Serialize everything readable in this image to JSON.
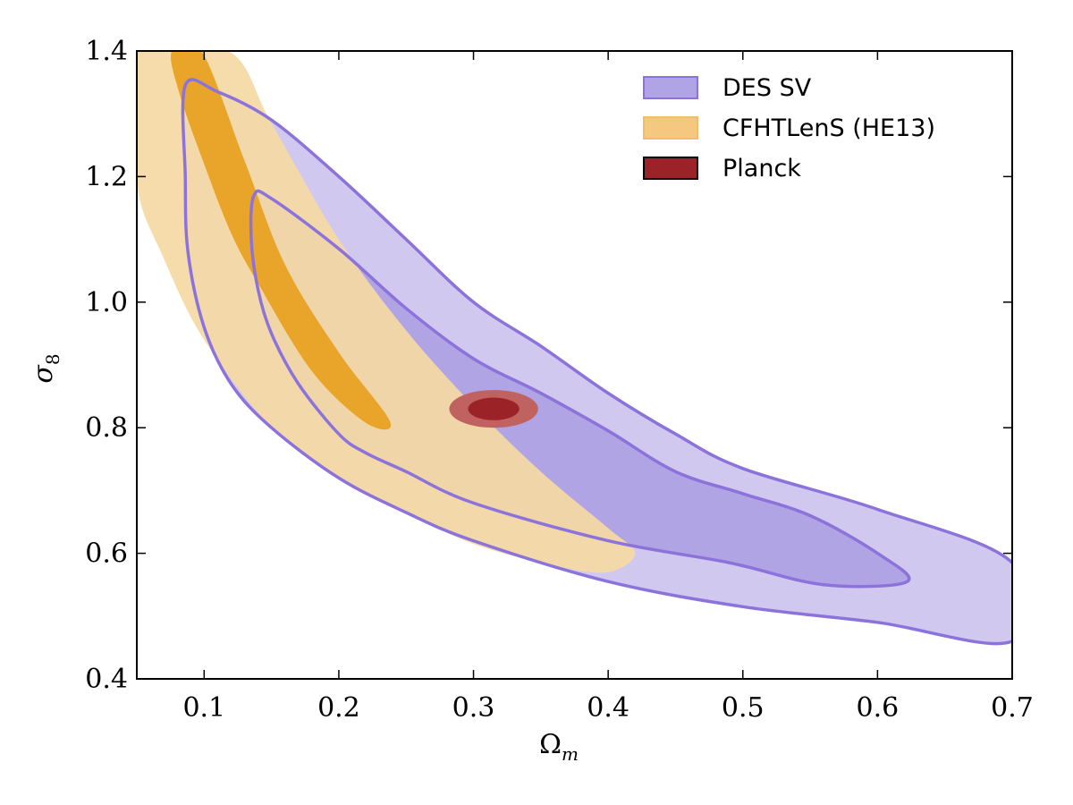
{
  "chart_data": {
    "type": "contour",
    "xlabel": "Ω_m",
    "ylabel": "σ_8",
    "xlim": [
      0.05,
      0.7
    ],
    "ylim": [
      0.4,
      1.4
    ],
    "x_ticks": [
      0.1,
      0.2,
      0.3,
      0.4,
      0.5,
      0.6,
      0.7
    ],
    "x_tick_labels": [
      "0.1",
      "0.2",
      "0.3",
      "0.4",
      "0.5",
      "0.6",
      "0.7"
    ],
    "y_ticks": [
      0.4,
      0.6,
      0.8,
      1.0,
      1.2,
      1.4
    ],
    "y_tick_labels": [
      "0.4",
      "0.6",
      "0.8",
      "1.0",
      "1.2",
      "1.4"
    ],
    "grid": false,
    "legend_position": "top-right",
    "series": [
      {
        "name": "DES SV",
        "fill_outer": "#d0c8ef",
        "fill_inner": "#b1a4e4",
        "line": "#8c73dc",
        "contour_95": [
          [
            0.086,
            1.345
          ],
          [
            0.11,
            1.335
          ],
          [
            0.15,
            1.29
          ],
          [
            0.2,
            1.2
          ],
          [
            0.25,
            1.1
          ],
          [
            0.3,
            1.0
          ],
          [
            0.35,
            0.93
          ],
          [
            0.4,
            0.855
          ],
          [
            0.45,
            0.79
          ],
          [
            0.5,
            0.735
          ],
          [
            0.6,
            0.67
          ],
          [
            0.7,
            0.585
          ],
          [
            0.7,
            0.46
          ],
          [
            0.6,
            0.49
          ],
          [
            0.5,
            0.515
          ],
          [
            0.4,
            0.555
          ],
          [
            0.3,
            0.62
          ],
          [
            0.25,
            0.665
          ],
          [
            0.2,
            0.72
          ],
          [
            0.15,
            0.8
          ],
          [
            0.12,
            0.87
          ],
          [
            0.1,
            0.96
          ],
          [
            0.088,
            1.08
          ],
          [
            0.086,
            1.2
          ]
        ],
        "contour_68": [
          [
            0.137,
            1.17
          ],
          [
            0.15,
            1.165
          ],
          [
            0.2,
            1.085
          ],
          [
            0.25,
            0.99
          ],
          [
            0.3,
            0.91
          ],
          [
            0.35,
            0.855
          ],
          [
            0.4,
            0.795
          ],
          [
            0.45,
            0.73
          ],
          [
            0.5,
            0.695
          ],
          [
            0.55,
            0.66
          ],
          [
            0.6,
            0.6
          ],
          [
            0.622,
            0.555
          ],
          [
            0.56,
            0.55
          ],
          [
            0.49,
            0.585
          ],
          [
            0.4,
            0.62
          ],
          [
            0.3,
            0.68
          ],
          [
            0.25,
            0.73
          ],
          [
            0.22,
            0.76
          ],
          [
            0.2,
            0.79
          ],
          [
            0.17,
            0.87
          ],
          [
            0.15,
            0.95
          ],
          [
            0.14,
            1.02
          ],
          [
            0.135,
            1.1
          ]
        ]
      },
      {
        "name": "CFHTLenS (HE13)",
        "fill_outer": "#f5d9a3",
        "fill_inner": "#e9a529",
        "line": "#eebf6a",
        "contour_95": [
          [
            0.05,
            1.4
          ],
          [
            0.118,
            1.4
          ],
          [
            0.15,
            1.285
          ],
          [
            0.2,
            1.1
          ],
          [
            0.25,
            0.955
          ],
          [
            0.3,
            0.835
          ],
          [
            0.35,
            0.73
          ],
          [
            0.4,
            0.64
          ],
          [
            0.42,
            0.6
          ],
          [
            0.4,
            0.57
          ],
          [
            0.36,
            0.58
          ],
          [
            0.3,
            0.615
          ],
          [
            0.25,
            0.665
          ],
          [
            0.2,
            0.72
          ],
          [
            0.15,
            0.8
          ],
          [
            0.1,
            0.94
          ],
          [
            0.07,
            1.07
          ],
          [
            0.05,
            1.19
          ]
        ],
        "contour_68": [
          [
            0.076,
            1.4
          ],
          [
            0.098,
            1.4
          ],
          [
            0.13,
            1.225
          ],
          [
            0.16,
            1.06
          ],
          [
            0.2,
            0.92
          ],
          [
            0.238,
            0.81
          ],
          [
            0.22,
            0.808
          ],
          [
            0.18,
            0.89
          ],
          [
            0.14,
            1.03
          ],
          [
            0.12,
            1.11
          ],
          [
            0.1,
            1.22
          ],
          [
            0.082,
            1.33
          ]
        ]
      },
      {
        "name": "Planck",
        "fill_outer": "#c0625f",
        "fill_inner": "#9b2226",
        "line": "#000000",
        "center": [
          0.315,
          0.83
        ],
        "radius_95": [
          0.033,
          0.03
        ],
        "radius_68": [
          0.019,
          0.018
        ]
      }
    ]
  }
}
